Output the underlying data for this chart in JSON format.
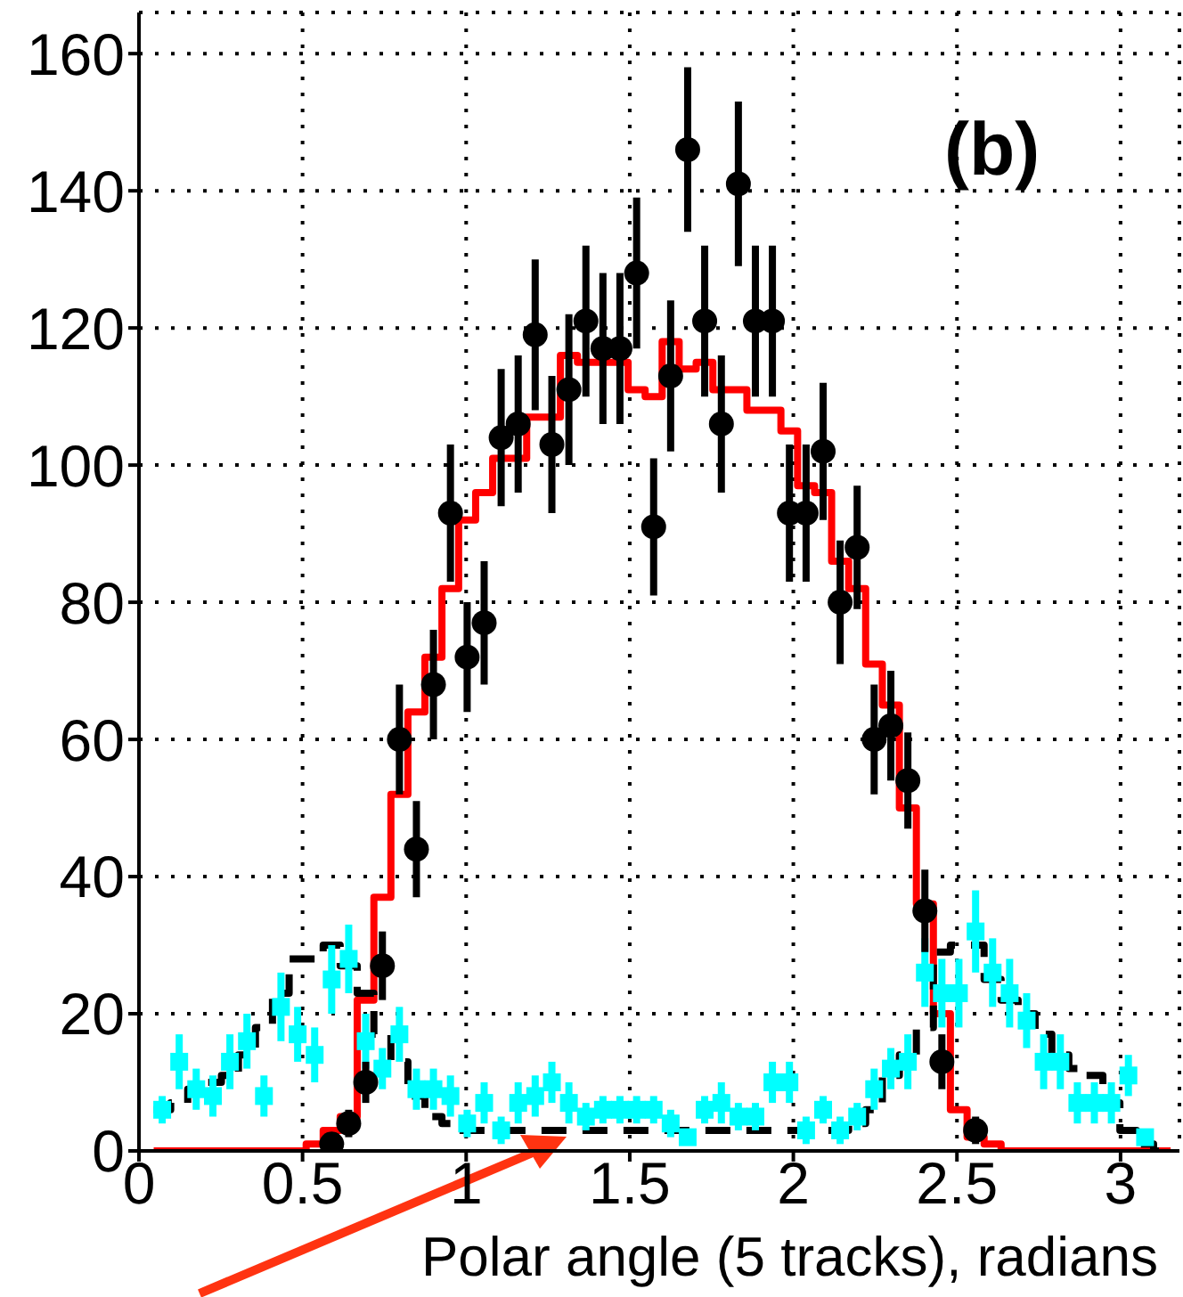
{
  "chart_data": {
    "type": "histogram",
    "xlabel": "Polar angle (5 tracks), radians",
    "annotations": [
      "(b)"
    ],
    "bins": [
      0.045,
      0.097,
      0.149,
      0.2,
      0.252,
      0.304,
      0.356,
      0.408,
      0.459,
      0.511,
      0.563,
      0.615,
      0.667,
      0.718,
      0.77,
      0.822,
      0.874,
      0.926,
      0.977,
      1.029,
      1.081,
      1.133,
      1.185,
      1.236,
      1.288,
      1.34,
      1.392,
      1.444,
      1.495,
      1.547,
      1.599,
      1.651,
      1.703,
      1.754,
      1.806,
      1.858,
      1.91,
      1.962,
      2.013,
      2.065,
      2.117,
      2.169,
      2.221,
      2.272,
      2.324,
      2.376,
      2.428,
      2.48,
      2.531,
      2.583,
      2.635,
      2.687,
      2.739,
      2.79,
      2.842,
      2.894,
      2.946,
      2.998,
      3.049,
      3.101,
      3.153
    ],
    "xlim": [
      0,
      3.18
    ],
    "xticks": [
      0,
      0.5,
      1,
      1.5,
      2,
      2.5,
      3
    ],
    "ylim": [
      0,
      166
    ],
    "yticks": [
      0,
      20,
      40,
      60,
      80,
      100,
      120,
      140,
      160
    ],
    "grid": true,
    "series": [
      {
        "color": "#ff0000",
        "line_style": "solid",
        "values": [
          0,
          0,
          0,
          0,
          0,
          0,
          0,
          0,
          0,
          1,
          3,
          5,
          22,
          37,
          52,
          64,
          72,
          82,
          92,
          96,
          101,
          101,
          107,
          107,
          116,
          115,
          115,
          115,
          111,
          110,
          118,
          114,
          115,
          111,
          111,
          108,
          108,
          105,
          97,
          96,
          86,
          82,
          71,
          65,
          50,
          36,
          20,
          6,
          2,
          1,
          0,
          0,
          0,
          0,
          0,
          0,
          0,
          0,
          0,
          0
        ]
      },
      {
        "color": "#000000",
        "line_style": "dashed",
        "values": [
          6,
          7,
          9,
          10,
          11,
          14,
          18,
          23,
          28,
          28,
          30,
          27,
          23,
          17,
          13,
          8,
          5,
          4,
          3,
          3,
          3,
          3,
          3,
          3,
          3,
          3,
          3,
          3,
          3,
          3,
          3,
          3,
          3,
          3,
          3,
          3,
          3,
          3,
          3,
          3,
          3,
          4,
          6,
          11,
          14,
          18,
          29,
          30,
          30,
          25,
          22,
          20,
          17,
          14,
          12,
          11,
          7,
          3,
          1,
          0
        ]
      },
      {
        "type": "scatter",
        "color": "#00ffff",
        "marker": "square",
        "x": [
          0.071,
          0.123,
          0.175,
          0.226,
          0.278,
          0.33,
          0.382,
          0.434,
          0.485,
          0.537,
          0.589,
          0.641,
          0.693,
          0.744,
          0.796,
          0.848,
          0.9,
          0.952,
          1.003,
          1.055,
          1.107,
          1.159,
          1.211,
          1.262,
          1.314,
          1.366,
          1.418,
          1.47,
          1.521,
          1.573,
          1.625,
          1.677,
          1.729,
          1.78,
          1.832,
          1.884,
          1.936,
          1.988,
          2.039,
          2.091,
          2.143,
          2.195,
          2.247,
          2.298,
          2.35,
          2.402,
          2.454,
          2.506,
          2.557,
          2.609,
          2.661,
          2.713,
          2.765,
          2.816,
          2.868,
          2.92,
          2.972,
          3.024,
          3.075
        ],
        "values": [
          6,
          13,
          9,
          8,
          13,
          16,
          8,
          21,
          17,
          14,
          25,
          28,
          16,
          12,
          17,
          9,
          9,
          8,
          4,
          7,
          3,
          7,
          8,
          10,
          7,
          5,
          6,
          6,
          6,
          6,
          4,
          2,
          6,
          7,
          5,
          5,
          10,
          10,
          3,
          6,
          3,
          5,
          9,
          12,
          13,
          26,
          23,
          23,
          32,
          26,
          23,
          19,
          13,
          13,
          7,
          7,
          7,
          11,
          2
        ],
        "errors": [
          2,
          4,
          3,
          3,
          4,
          4,
          3,
          5,
          4,
          4,
          5,
          5,
          4,
          3,
          4,
          3,
          3,
          3,
          2,
          3,
          2,
          3,
          3,
          3,
          3,
          2,
          2,
          2,
          2,
          2,
          2,
          1,
          2,
          3,
          2,
          2,
          3,
          3,
          2,
          2,
          2,
          2,
          3,
          3,
          4,
          5,
          5,
          5,
          6,
          5,
          5,
          4,
          4,
          4,
          3,
          3,
          3,
          3,
          1
        ]
      },
      {
        "type": "scatter",
        "color": "#000000",
        "marker": "circle",
        "x": [
          0.589,
          0.641,
          0.693,
          0.744,
          0.796,
          0.848,
          0.9,
          0.952,
          1.003,
          1.055,
          1.107,
          1.159,
          1.211,
          1.262,
          1.314,
          1.366,
          1.418,
          1.47,
          1.521,
          1.573,
          1.625,
          1.677,
          1.729,
          1.78,
          1.832,
          1.884,
          1.936,
          1.988,
          2.039,
          2.091,
          2.143,
          2.195,
          2.247,
          2.298,
          2.35,
          2.402,
          2.454,
          2.557
        ],
        "values": [
          1,
          4,
          10,
          27,
          60,
          44,
          68,
          93,
          72,
          77,
          104,
          106,
          119,
          103,
          111,
          121,
          117,
          117,
          128,
          91,
          113,
          146,
          121,
          106,
          141,
          121,
          121,
          93,
          93,
          102,
          80,
          88,
          60,
          62,
          54,
          35,
          13,
          3
        ],
        "errors": [
          1,
          2,
          3,
          5,
          8,
          7,
          8,
          10,
          8,
          9,
          10,
          10,
          11,
          10,
          11,
          11,
          11,
          11,
          11,
          10,
          11,
          12,
          11,
          10,
          12,
          11,
          11,
          10,
          10,
          10,
          9,
          9,
          8,
          8,
          7,
          6,
          4,
          2
        ]
      }
    ]
  }
}
